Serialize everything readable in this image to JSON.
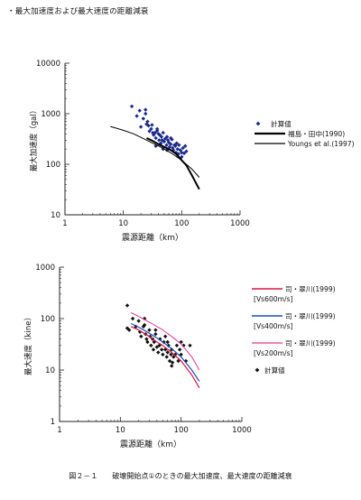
{
  "heading": "・最大加速度および最大速度の距離減衰",
  "caption": "図２－１　　破壊開始点①のときの最大加速度、最大速度の距離減衰",
  "chart_data": [
    {
      "type": "scatter",
      "ylabel": "最大加速度（gal）",
      "xlabel": "震源距離（km）",
      "xscale": "log",
      "yscale": "log",
      "xlim": [
        1,
        1000
      ],
      "ylim": [
        10,
        10000
      ],
      "xticks": [
        "1",
        "10",
        "100",
        "1000"
      ],
      "yticks": [
        "10",
        "100",
        "1000",
        "10000"
      ],
      "grid": false,
      "legend_position": "right",
      "legend": [
        {
          "label": "計算値",
          "kind": "marker",
          "color": "#1b2a8c"
        },
        {
          "label": "福島・田中(1990)",
          "kind": "line",
          "color": "#000000",
          "width": 2
        },
        {
          "label": "Youngs et al.(1997)",
          "kind": "line",
          "color": "#000000",
          "width": 1
        }
      ],
      "series": [
        {
          "name": "計算値",
          "kind": "points",
          "color": "#1b2a8c",
          "x": [
            14,
            17,
            19,
            22,
            24,
            25,
            20,
            26,
            28,
            27,
            30,
            32,
            31,
            33,
            35,
            36,
            38,
            40,
            41,
            42,
            44,
            45,
            46,
            48,
            50,
            52,
            55,
            56,
            58,
            60,
            62,
            65,
            68,
            70,
            72,
            75,
            78,
            80,
            85,
            88,
            90,
            95,
            100,
            105,
            110,
            120,
            48,
            38,
            65,
            82,
            24,
            36,
            56,
            100,
            115
          ],
          "y": [
            1400,
            900,
            1150,
            800,
            1000,
            620,
            550,
            700,
            450,
            580,
            500,
            420,
            600,
            380,
            420,
            330,
            460,
            400,
            300,
            380,
            260,
            350,
            300,
            420,
            280,
            320,
            240,
            350,
            300,
            270,
            220,
            250,
            310,
            210,
            190,
            240,
            230,
            170,
            200,
            160,
            240,
            190,
            170,
            210,
            165,
            180,
            200,
            500,
            330,
            260,
            1200,
            230,
            190,
            140,
            230
          ]
        },
        {
          "name": "福島・田中(1990)",
          "kind": "curve",
          "color": "#000000",
          "width": 2,
          "x": [
            25,
            30,
            40,
            50,
            60,
            70,
            80,
            100,
            120,
            150,
            200
          ],
          "y": [
            330,
            300,
            250,
            220,
            200,
            180,
            160,
            120,
            95,
            60,
            32
          ]
        },
        {
          "name": "Youngs et al.(1997)",
          "kind": "curve",
          "color": "#000000",
          "width": 1,
          "x": [
            6,
            10,
            15,
            20,
            30,
            40,
            50,
            70,
            100,
            150,
            200
          ],
          "y": [
            560,
            470,
            400,
            340,
            270,
            230,
            200,
            160,
            120,
            80,
            55
          ]
        }
      ]
    },
    {
      "type": "scatter",
      "ylabel": "最大速度（kine）",
      "xlabel": "震源距離（km）",
      "xscale": "log",
      "yscale": "log",
      "xlim": [
        1,
        1000
      ],
      "ylim": [
        1,
        1000
      ],
      "xticks": [
        "1",
        "10",
        "100",
        "1000"
      ],
      "yticks": [
        "1",
        "10",
        "100",
        "1000"
      ],
      "grid": false,
      "legend_position": "right",
      "legend": [
        {
          "label": "司・翠川(1999)",
          "label2": "[Vs600m/s]",
          "kind": "line",
          "color": "#d9163a",
          "width": 1.2
        },
        {
          "label": "司・翠川(1999)",
          "label2": "[Vs400m/s]",
          "kind": "line",
          "color": "#1b4fb5",
          "width": 1.2
        },
        {
          "label": "司・翠川(1999)",
          "label2": "[Vs200m/s]",
          "kind": "line",
          "color": "#e0389a",
          "width": 1
        },
        {
          "label": "計算値",
          "label2": "",
          "kind": "marker",
          "color": "#111111"
        }
      ],
      "series": [
        {
          "name": "計算値",
          "kind": "points",
          "color": "#111111",
          "x": [
            13,
            14,
            16,
            18,
            20,
            21,
            22,
            24,
            25,
            26,
            27,
            28,
            30,
            31,
            32,
            34,
            35,
            36,
            38,
            40,
            42,
            44,
            45,
            48,
            50,
            52,
            55,
            58,
            60,
            62,
            65,
            68,
            70,
            72,
            75,
            80,
            85,
            90,
            95,
            100,
            110,
            120,
            13,
            25,
            38,
            55,
            70,
            100,
            140,
            60
          ],
          "y": [
            180,
            60,
            100,
            70,
            90,
            55,
            45,
            70,
            100,
            50,
            40,
            35,
            60,
            45,
            30,
            40,
            25,
            35,
            50,
            28,
            22,
            30,
            40,
            25,
            20,
            35,
            25,
            18,
            22,
            30,
            15,
            20,
            25,
            14,
            18,
            20,
            30,
            15,
            25,
            20,
            30,
            15,
            65,
            75,
            60,
            45,
            12,
            35,
            30,
            35
          ]
        },
        {
          "name": "司・翠川(1999) [Vs600m/s]",
          "kind": "curve",
          "color": "#d9163a",
          "width": 1.2,
          "x": [
            15,
            20,
            30,
            40,
            50,
            70,
            100,
            150,
            200
          ],
          "y": [
            70,
            60,
            45,
            35,
            30,
            22,
            15,
            8,
            4.5
          ]
        },
        {
          "name": "司・翠川(1999) [Vs400m/s]",
          "kind": "curve",
          "color": "#1b4fb5",
          "width": 1.2,
          "x": [
            15,
            20,
            30,
            40,
            50,
            70,
            100,
            150,
            200
          ],
          "y": [
            80,
            68,
            52,
            42,
            35,
            26,
            18,
            10,
            6
          ]
        },
        {
          "name": "司・翠川(1999) [Vs200m/s]",
          "kind": "curve",
          "color": "#e0389a",
          "width": 1,
          "x": [
            15,
            20,
            30,
            40,
            50,
            70,
            100,
            150,
            200
          ],
          "y": [
            130,
            110,
            85,
            70,
            60,
            45,
            32,
            18,
            10
          ]
        }
      ]
    }
  ]
}
